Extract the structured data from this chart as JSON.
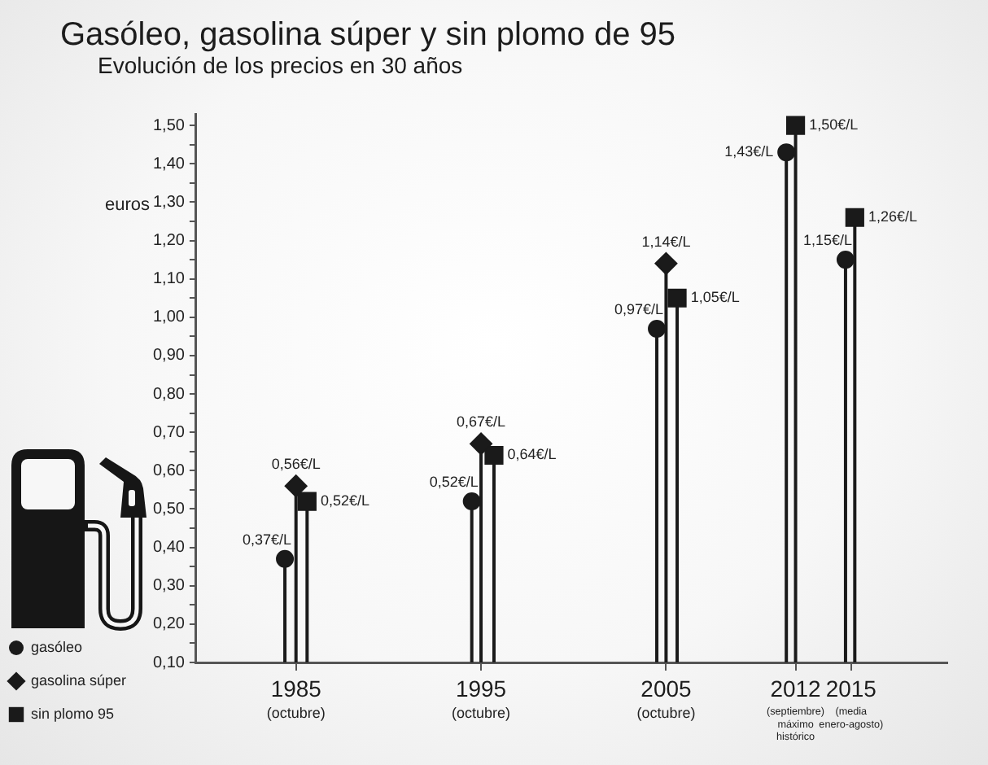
{
  "chart_data": {
    "type": "lollipop",
    "title": "Gasóleo, gasolina súper y sin plomo de 95",
    "subtitle": "Evolución de los precios en 30 años",
    "ylabel": "euros",
    "series": [
      {
        "name": "gasóleo",
        "color": "#1a1a1a",
        "marker": "circle",
        "x": [
          1984.4,
          1994.5,
          2004.5,
          2011.5,
          2014.7
        ],
        "values": [
          0.37,
          0.52,
          0.97,
          1.43,
          1.15
        ],
        "value_labels": [
          "0,37€/L",
          "0,52€/L",
          "0,97€/L",
          "1,43€/L",
          "1,15€/L"
        ]
      },
      {
        "name": "gasolina súper",
        "color": "#1a1a1a",
        "marker": "diamond",
        "x": [
          1985,
          1995,
          2005
        ],
        "values": [
          0.56,
          0.67,
          1.14
        ],
        "value_labels": [
          "0,56€/L",
          "0,67€/L",
          "1,14€/L"
        ]
      },
      {
        "name": "sin plomo 95",
        "color": "#1a1a1a",
        "marker": "square",
        "x": [
          1985.6,
          1995.7,
          2005.6,
          2012,
          2015.2
        ],
        "values": [
          0.52,
          0.64,
          1.05,
          1.5,
          1.26
        ],
        "value_labels": [
          "0,52€/L",
          "0,64€/L",
          "1,05€/L",
          "1,50€/L",
          "1,26€/L"
        ]
      }
    ],
    "xlim": [
      1979.6,
      2020.2
    ],
    "xticks": [
      1985,
      1995,
      2005,
      2012,
      2015
    ],
    "annotations": [
      "(octubre)",
      "(octubre)",
      "(octubre)",
      "(septiembre) máximo histórico",
      "(media enero-agosto)"
    ],
    "ylim": [
      0.1,
      1.53
    ],
    "yticks": [
      {
        "value": 0.1,
        "label": "0,10"
      },
      {
        "value": 0.15,
        "label": null
      },
      {
        "value": 0.2,
        "label": "0,20"
      },
      {
        "value": 0.25,
        "label": null
      },
      {
        "value": 0.3,
        "label": "0,30"
      },
      {
        "value": 0.35,
        "label": null
      },
      {
        "value": 0.4,
        "label": "0,40"
      },
      {
        "value": 0.45,
        "label": null
      },
      {
        "value": 0.5,
        "label": "0,50"
      },
      {
        "value": 0.55,
        "label": null
      },
      {
        "value": 0.6,
        "label": "0,60"
      },
      {
        "value": 0.65,
        "label": null
      },
      {
        "value": 0.7,
        "label": "0,70"
      },
      {
        "value": 0.75,
        "label": null
      },
      {
        "value": 0.8,
        "label": "0,80"
      },
      {
        "value": 0.85,
        "label": null
      },
      {
        "value": 0.9,
        "label": "0,90"
      },
      {
        "value": 0.95,
        "label": null
      },
      {
        "value": 1.0,
        "label": "1,00"
      },
      {
        "value": 1.05,
        "label": null
      },
      {
        "value": 1.1,
        "label": "1,10"
      },
      {
        "value": 1.15,
        "label": null
      },
      {
        "value": 1.2,
        "label": "1,20"
      },
      {
        "value": 1.25,
        "label": null
      },
      {
        "value": 1.3,
        "label": "1,30"
      },
      {
        "value": 1.35,
        "label": null
      },
      {
        "value": 1.4,
        "label": "1,40"
      },
      {
        "value": 1.45,
        "label": null
      },
      {
        "value": 1.5,
        "label": "1,50"
      }
    ],
    "legend": "bottom left"
  }
}
